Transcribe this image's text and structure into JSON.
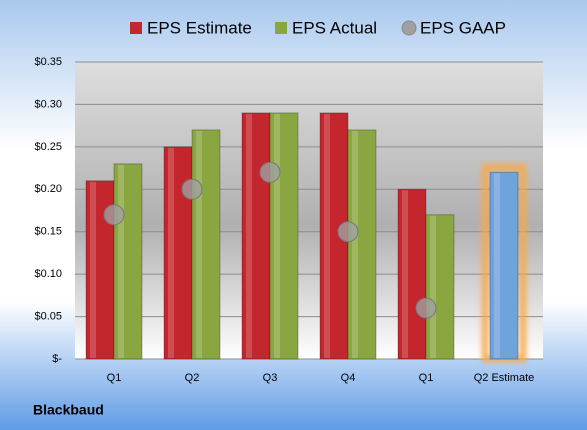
{
  "chart_data": {
    "type": "bar",
    "footer": "Blackbaud",
    "categories": [
      "Q1",
      "Q2",
      "Q3",
      "Q4",
      "Q1",
      "Q2 Estimate"
    ],
    "series": [
      {
        "name": "EPS Estimate",
        "color": "#c4262e",
        "values": [
          0.21,
          0.25,
          0.29,
          0.29,
          0.2,
          0.22
        ]
      },
      {
        "name": "EPS Actual",
        "color": "#8aa640",
        "values": [
          0.23,
          0.27,
          0.29,
          0.27,
          0.17,
          null
        ]
      },
      {
        "name": "EPS GAAP",
        "color": "#a0a0a0",
        "marker": "bubble",
        "values": [
          0.17,
          0.2,
          0.22,
          0.15,
          0.06,
          null
        ]
      }
    ],
    "highlight_color": "#6fa3dc",
    "highlight_glow": "#f7a94a",
    "ylim": [
      0,
      0.35
    ],
    "yticks": [
      {
        "value": 0,
        "label": "$-"
      },
      {
        "value": 0.05,
        "label": "$0.05"
      },
      {
        "value": 0.1,
        "label": "$0.10"
      },
      {
        "value": 0.15,
        "label": "$0.15"
      },
      {
        "value": 0.2,
        "label": "$0.20"
      },
      {
        "value": 0.25,
        "label": "$0.25"
      },
      {
        "value": 0.3,
        "label": "$0.30"
      },
      {
        "value": 0.35,
        "label": "$0.35"
      }
    ],
    "grid": true
  }
}
